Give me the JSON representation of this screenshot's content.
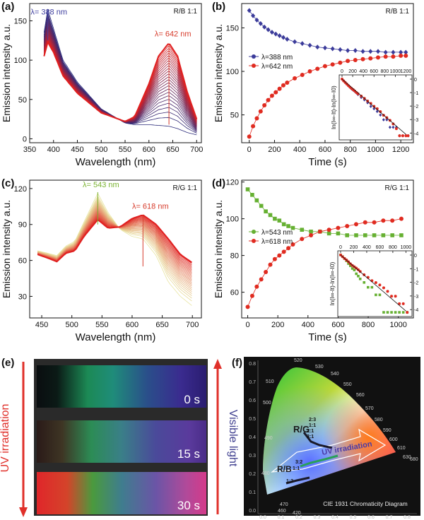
{
  "figure": {
    "panel_labels": [
      "(a)",
      "(b)",
      "(c)",
      "(d)",
      "(e)",
      "(f)"
    ]
  },
  "chart_data": [
    {
      "panel": "(a)",
      "type": "line",
      "corner_label": "R/B 1:1",
      "xlabel": "Wavelength (nm)",
      "ylabel": "Emission intensity a.u.",
      "xlim": [
        350,
        710
      ],
      "ylim": [
        -5,
        172
      ],
      "xticks": [
        350,
        400,
        450,
        500,
        550,
        600,
        650,
        700
      ],
      "yticks": [
        0,
        50,
        100,
        150
      ],
      "annotations": [
        {
          "text": "λ= 388 nm",
          "color": "#3f3f9f"
        },
        {
          "text": "λ= 642 nm",
          "color": "#d63a2a"
        }
      ],
      "series": [
        {
          "values_first": {
            "x": [
              380,
              388,
              400,
              420,
              450,
              500,
              550,
              570,
              600,
              620,
              642,
              660,
              680,
              700
            ],
            "y": [
              135,
              165,
              140,
              100,
              72,
              38,
              20,
              18,
              18,
              17,
              16,
              13,
              8,
              5
            ]
          },
          "values_last": {
            "x": [
              380,
              388,
              400,
              420,
              450,
              500,
              550,
              570,
              600,
              620,
              642,
              660,
              680,
              700
            ],
            "y": [
              105,
              123,
              110,
              80,
              58,
              33,
              22,
              28,
              70,
              105,
              122,
              105,
              60,
              25
            ]
          },
          "n_curves": 26
        }
      ]
    },
    {
      "panel": "(b)",
      "type": "scatter",
      "corner_label": "R/B 1:1",
      "xlabel": "Time (s)",
      "ylabel": "Emission intensity a.u.",
      "xlim": [
        -60,
        1300
      ],
      "ylim": [
        18,
        178
      ],
      "xticks": [
        0,
        200,
        400,
        600,
        800,
        1000,
        1200
      ],
      "yticks": [
        50,
        100,
        150
      ],
      "legend": "top-left",
      "series": [
        {
          "name": "λ=388 nm",
          "color": "#3b3b9a",
          "marker": "diamond",
          "x": [
            0,
            30,
            60,
            90,
            120,
            150,
            180,
            210,
            240,
            270,
            300,
            360,
            420,
            480,
            540,
            600,
            660,
            720,
            780,
            840,
            900,
            960,
            1020,
            1080,
            1140,
            1200,
            1240
          ],
          "y": [
            170,
            164,
            159,
            155,
            151,
            148,
            145,
            143,
            141,
            139,
            137,
            134,
            132,
            130,
            128,
            127,
            126,
            125,
            124,
            124,
            123,
            123,
            123,
            122,
            122,
            122,
            122
          ]
        },
        {
          "name": "λ=642 nm",
          "color": "#e02b20",
          "marker": "circle",
          "x": [
            0,
            30,
            60,
            90,
            120,
            150,
            180,
            210,
            240,
            270,
            300,
            360,
            420,
            480,
            540,
            600,
            660,
            720,
            780,
            840,
            900,
            960,
            1020,
            1080,
            1140,
            1200,
            1240
          ],
          "y": [
            25,
            37,
            46,
            54,
            61,
            67,
            72,
            76,
            80,
            84,
            87,
            92,
            96,
            100,
            103,
            106,
            108,
            110,
            112,
            113,
            114,
            115,
            116,
            117,
            117,
            118,
            118
          ]
        }
      ],
      "inset": {
        "xlabel": "",
        "ylabel": "ln(I∞-It)-ln(I∞-I0)",
        "xticks": [
          0,
          200,
          400,
          600,
          800,
          1000,
          1200
        ],
        "yticks": [
          0,
          -1,
          -2,
          -3,
          -4
        ]
      }
    },
    {
      "panel": "(c)",
      "type": "line",
      "corner_label": "R/G 1:1",
      "xlabel": "Wavelength (nm)",
      "ylabel": "Emission intensity a.u.",
      "xlim": [
        430,
        715
      ],
      "ylim": [
        12,
        127
      ],
      "xticks": [
        450,
        500,
        550,
        600,
        650,
        700
      ],
      "yticks": [
        30,
        60,
        90,
        120
      ],
      "annotations": [
        {
          "text": "λ= 543 nm",
          "color": "#7ab330"
        },
        {
          "text": "λ= 618 nm",
          "color": "#d63a2a"
        }
      ],
      "series": [
        {
          "values_first": {
            "x": [
              443,
              460,
              475,
              490,
              505,
              520,
              543,
              560,
              580,
              600,
              618,
              640,
              660,
              680,
              700
            ],
            "y": [
              68,
              66,
              64,
              72,
              76,
              92,
              116,
              100,
              86,
              80,
              78,
              64,
              42,
              30,
              22
            ]
          },
          "values_last": {
            "x": [
              443,
              460,
              475,
              490,
              505,
              520,
              543,
              560,
              580,
              600,
              618,
              640,
              660,
              680,
              700
            ],
            "y": [
              65,
              62,
              59,
              66,
              68,
              80,
              94,
              87,
              88,
              95,
              98,
              90,
              78,
              65,
              58
            ]
          },
          "n_curves": 26
        }
      ]
    },
    {
      "panel": "(d)",
      "type": "scatter",
      "corner_label": "R/G 1:1",
      "xlabel": "Time (s)",
      "ylabel": "Emission intensity a.u.",
      "xlim": [
        -40,
        1100
      ],
      "ylim": [
        46,
        121
      ],
      "xticks": [
        0,
        200,
        400,
        600,
        800,
        1000
      ],
      "yticks": [
        60,
        80,
        100,
        120
      ],
      "legend": "center-left",
      "series": [
        {
          "name": "λ=543 nm",
          "color": "#66b032",
          "marker": "square",
          "x": [
            0,
            30,
            60,
            90,
            120,
            150,
            180,
            210,
            240,
            270,
            300,
            360,
            420,
            480,
            540,
            600,
            660,
            720,
            780,
            840,
            900,
            960,
            1020
          ],
          "y": [
            116,
            113,
            110,
            107,
            104,
            102,
            100,
            99,
            97,
            96,
            95,
            94,
            93,
            93,
            92,
            92,
            91,
            91,
            91,
            91,
            91,
            91,
            91
          ]
        },
        {
          "name": "λ=618 nm",
          "color": "#e02b20",
          "marker": "circle",
          "x": [
            0,
            30,
            60,
            90,
            120,
            150,
            180,
            210,
            240,
            270,
            300,
            360,
            420,
            480,
            540,
            600,
            660,
            720,
            780,
            840,
            900,
            960,
            1020
          ],
          "y": [
            52,
            58,
            63,
            67,
            71,
            75,
            78,
            80,
            82,
            84,
            86,
            89,
            91,
            93,
            94,
            95,
            96,
            97,
            98,
            98,
            99,
            99,
            100
          ]
        }
      ],
      "inset": {
        "xlabel": "",
        "ylabel": "ln(I∞-It)-ln(I∞-I0)",
        "xticks": [
          0,
          200,
          400,
          600,
          800,
          1000
        ],
        "yticks": [
          0,
          -1,
          -2,
          -3,
          -4
        ]
      }
    }
  ],
  "panel_e": {
    "side_left": "UV irradiation",
    "side_right": "Visible light",
    "strips": [
      {
        "label": "0 s"
      },
      {
        "label": "15 s"
      },
      {
        "label": "30 s"
      }
    ]
  },
  "panel_f": {
    "caption": "CIE 1931 Chromaticity Diagram",
    "labels": {
      "rg": "R/G",
      "rb": "R/B",
      "uv": "UV irradiation",
      "ratios_rg": [
        "2:3",
        "1:1",
        "2:1",
        "3:1"
      ],
      "ratios_rb": [
        "3:2",
        "1:1",
        "1:2"
      ]
    },
    "wavelengths": [
      "520",
      "530",
      "540",
      "550",
      "560",
      "570",
      "580",
      "590",
      "600",
      "610",
      "630",
      "680",
      "510",
      "500",
      "490",
      "480",
      "470",
      "460",
      "420"
    ],
    "xticks": [
      "0.0",
      "0.1",
      "0.2",
      "0.3",
      "0.4",
      "0.5",
      "0.6",
      "0.7",
      "0.8"
    ],
    "yticks": [
      "0.0",
      "0.1",
      "0.2",
      "0.3",
      "0.4",
      "0.5",
      "0.6",
      "0.7",
      "0.8"
    ]
  }
}
